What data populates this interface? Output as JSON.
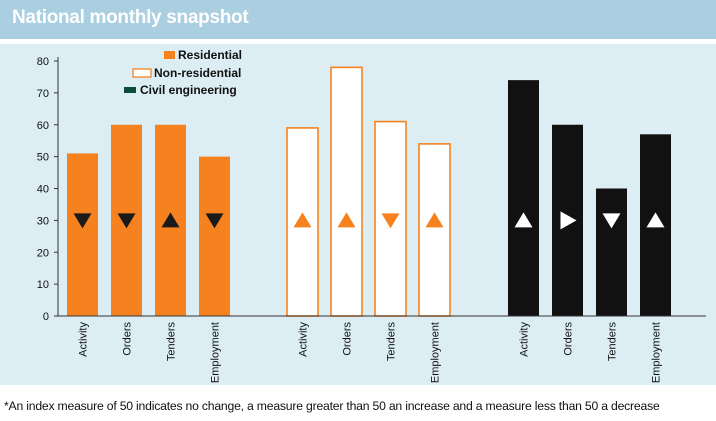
{
  "header": {
    "title": "National monthly snapshot"
  },
  "footnote": "*An index measure of 50 indicates no change, a measure greater than 50 an increase and a measure less than 50 a decrease",
  "colors": {
    "residential": "#f5821f",
    "non_residential_stroke": "#f5821f",
    "non_residential_fill": "#ffffff",
    "civil": "#111111",
    "header_bg": "#a9cfe0",
    "panel_bg": "#dcedf4",
    "civil_legend": "#0b4d3a"
  },
  "chart_data": {
    "type": "bar",
    "title": "National monthly snapshot",
    "ylim": [
      0,
      80
    ],
    "yticks": [
      0,
      10,
      20,
      30,
      40,
      50,
      60,
      70,
      80
    ],
    "legend_position": "top-left",
    "legend": [
      {
        "name": "Residential",
        "style": "filled-orange"
      },
      {
        "name": "Non-residential",
        "style": "outline-orange"
      },
      {
        "name": "Civil engineering",
        "style": "filled-green"
      }
    ],
    "series": [
      {
        "name": "Residential",
        "categories": [
          "Activity",
          "Orders",
          "Tenders",
          "Employment"
        ],
        "values": [
          51,
          60,
          60,
          50
        ],
        "markers": [
          "down",
          "down",
          "up",
          "down"
        ]
      },
      {
        "name": "Non-residential",
        "categories": [
          "Activity",
          "Orders",
          "Tenders",
          "Employment"
        ],
        "values": [
          59,
          78,
          61,
          54
        ],
        "markers": [
          "up",
          "up",
          "down",
          "up"
        ]
      },
      {
        "name": "Civil engineering",
        "categories": [
          "Activity",
          "Orders",
          "Tenders",
          "Employment"
        ],
        "values": [
          74,
          60,
          40,
          57
        ],
        "markers": [
          "up",
          "right",
          "down",
          "up"
        ]
      }
    ]
  }
}
